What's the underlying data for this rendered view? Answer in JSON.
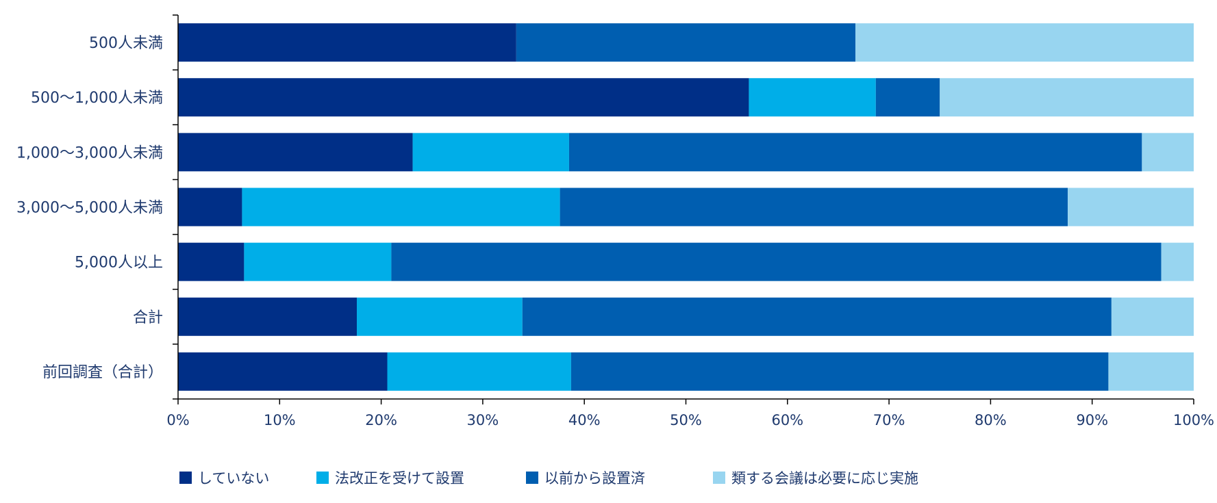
{
  "chart_data": {
    "type": "bar",
    "orientation": "horizontal",
    "stacked": true,
    "categories": [
      "500人未満",
      "500〜1,000人未満",
      "1,000〜3,000人未満",
      "3,000〜5,000人未満",
      "5,000人以上",
      "合計",
      "前回調査（合計）"
    ],
    "series": [
      {
        "name": "していない",
        "color": "#002F87",
        "values": [
          33.3,
          56.2,
          23.1,
          6.3,
          6.5,
          17.6,
          20.6
        ]
      },
      {
        "name": "法改正を受けて設置",
        "color": "#00AEE8",
        "values": [
          0,
          12.5,
          15.4,
          31.3,
          14.5,
          16.3,
          18.1
        ]
      },
      {
        "name": "以前から設置済",
        "color": "#005EB0",
        "values": [
          33.4,
          6.3,
          56.4,
          50.0,
          75.8,
          58.0,
          52.9
        ]
      },
      {
        "name": "類する会議は必要に応じ実施",
        "color": "#98D5F0",
        "values": [
          33.3,
          25.0,
          5.1,
          12.4,
          3.2,
          8.1,
          8.4
        ]
      }
    ],
    "xlim": [
      0,
      100
    ],
    "xticks": [
      "0%",
      "10%",
      "20%",
      "30%",
      "40%",
      "50%",
      "60%",
      "70%",
      "80%",
      "90%",
      "100%"
    ],
    "grid": false,
    "legend_position": "bottom",
    "text_color": "#1F3A6E"
  }
}
